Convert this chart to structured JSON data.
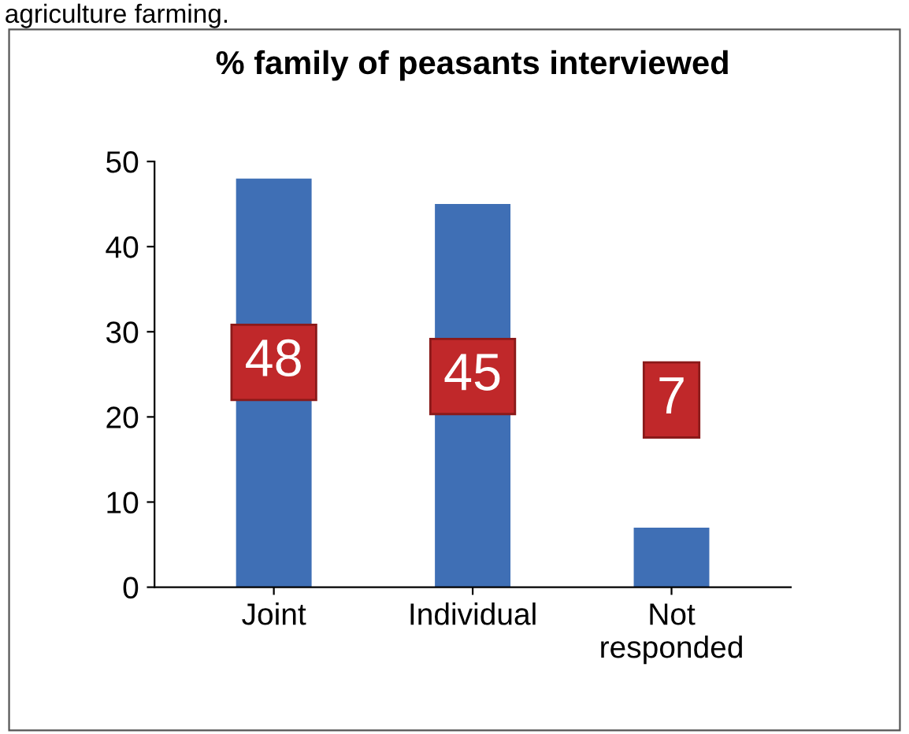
{
  "chart_data": {
    "type": "bar",
    "title": "% family of peasants interviewed",
    "categories": [
      "Joint",
      "Individual",
      "Not\nresponded"
    ],
    "values": [
      48,
      45,
      7
    ],
    "color": "#3f6fb5",
    "ylim": [
      0,
      50
    ],
    "yticks": [
      0,
      10,
      20,
      30,
      40,
      50
    ],
    "grid": false,
    "data_labels": true,
    "annotations": [
      "agriculture farming."
    ]
  }
}
